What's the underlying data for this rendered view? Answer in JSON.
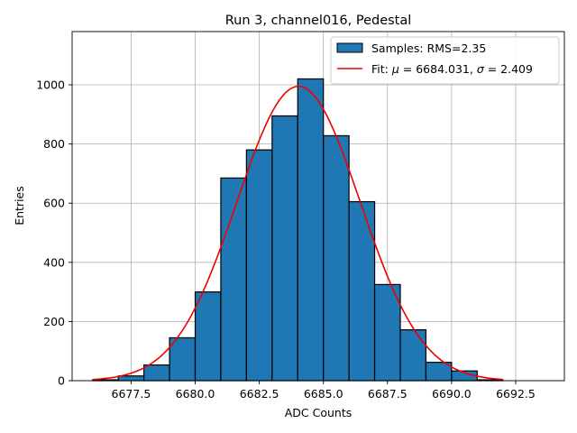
{
  "chart_data": {
    "type": "histogram",
    "title": "Run 3, channel016, Pedestal",
    "xlabel": "ADC Counts",
    "ylabel": "Entries",
    "xlim": [
      6675.2,
      6694.4
    ],
    "ylim": [
      0,
      1180
    ],
    "xticks": [
      6677.5,
      6680.0,
      6682.5,
      6685.0,
      6687.5,
      6690.0,
      6692.5
    ],
    "xtick_labels": [
      "6677.5",
      "6680.0",
      "6682.5",
      "6685.0",
      "6687.5",
      "6690.0",
      "6692.5"
    ],
    "yticks": [
      0,
      200,
      400,
      600,
      800,
      1000
    ],
    "ytick_labels": [
      "0",
      "200",
      "400",
      "600",
      "800",
      "1000"
    ],
    "grid": true,
    "bins": [
      {
        "left": 6676,
        "right": 6677,
        "count": 3
      },
      {
        "left": 6677,
        "right": 6678,
        "count": 16
      },
      {
        "left": 6678,
        "right": 6679,
        "count": 53
      },
      {
        "left": 6679,
        "right": 6680,
        "count": 145
      },
      {
        "left": 6680,
        "right": 6681,
        "count": 300
      },
      {
        "left": 6681,
        "right": 6682,
        "count": 685
      },
      {
        "left": 6682,
        "right": 6683,
        "count": 780
      },
      {
        "left": 6683,
        "right": 6684,
        "count": 895
      },
      {
        "left": 6684,
        "right": 6685,
        "count": 1020
      },
      {
        "left": 6685,
        "right": 6686,
        "count": 828
      },
      {
        "left": 6686,
        "right": 6687,
        "count": 605
      },
      {
        "left": 6687,
        "right": 6688,
        "count": 325
      },
      {
        "left": 6688,
        "right": 6689,
        "count": 172
      },
      {
        "left": 6689,
        "right": 6690,
        "count": 62
      },
      {
        "left": 6690,
        "right": 6691,
        "count": 33
      },
      {
        "left": 6691,
        "right": 6692,
        "count": 3
      }
    ],
    "fit": {
      "mu": 6684.031,
      "sigma": 2.409,
      "amplitude": 995,
      "x_range": [
        6676,
        6692
      ]
    },
    "legend": {
      "placement": "top-right",
      "entries": [
        {
          "kind": "patch",
          "label": "Samples: RMS=2.35",
          "color": "#1f77b4"
        },
        {
          "kind": "line",
          "label_prefix": "Fit: ",
          "mu_symbol": "μ",
          "mu_text": " = 6684.031, ",
          "sigma_symbol": "σ",
          "sigma_text": " = 2.409",
          "color": "#ee0000"
        }
      ]
    }
  }
}
